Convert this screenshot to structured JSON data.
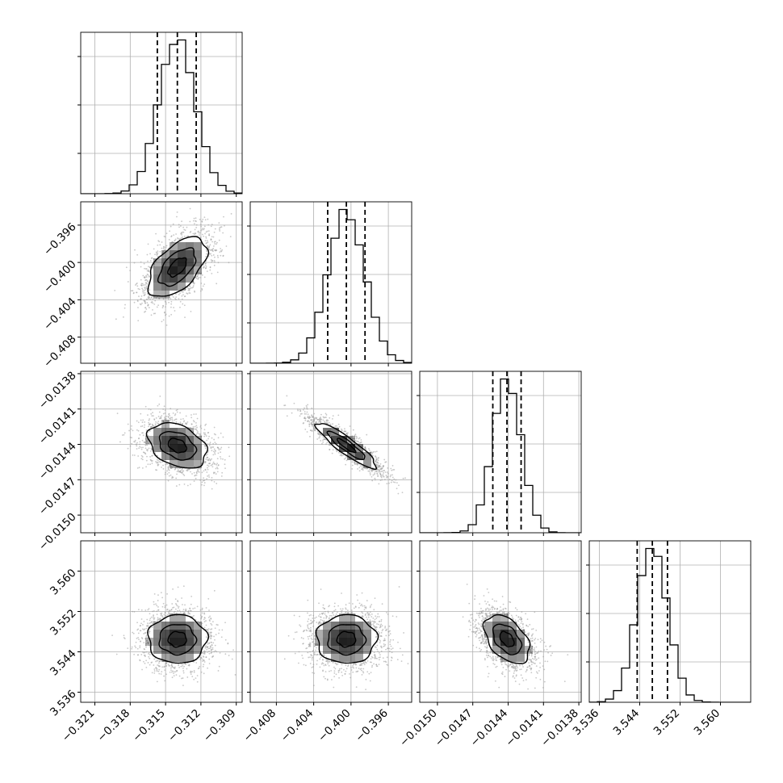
{
  "chart_data": {
    "type": "corner",
    "parameters": [
      {
        "ticks": [
          -0.321,
          -0.318,
          -0.315,
          -0.312,
          -0.309
        ],
        "tick_labels": [
          "−0.321",
          "−0.318",
          "−0.315",
          "−0.312",
          "−0.309"
        ],
        "range": [
          -0.3222,
          -0.3085
        ],
        "mean": -0.314,
        "sd": 0.00155,
        "quantiles": [
          -0.3157,
          -0.314,
          -0.3124
        ]
      },
      {
        "ticks": [
          -0.408,
          -0.404,
          -0.4,
          -0.396
        ],
        "tick_labels": [
          "−0.408",
          "−0.404",
          "−0.400",
          "−0.396"
        ],
        "range": [
          -0.4108,
          -0.3935
        ],
        "mean": -0.4005,
        "sd": 0.002,
        "quantiles": [
          -0.4025,
          -0.4005,
          -0.3985
        ]
      },
      {
        "ticks": [
          -0.015,
          -0.0147,
          -0.0144,
          -0.0141,
          -0.0138
        ],
        "tick_labels": [
          "−0.0150",
          "−0.0147",
          "−0.0144",
          "−0.0141",
          "−0.0138"
        ],
        "range": [
          -0.01515,
          -0.01378
        ],
        "mean": -0.01441,
        "sd": 0.00012,
        "quantiles": [
          -0.01453,
          -0.01441,
          -0.01429
        ]
      },
      {
        "ticks": [
          3.536,
          3.544,
          3.552,
          3.56
        ],
        "tick_labels": [
          "3.536",
          "3.544",
          "3.552",
          "3.560"
        ],
        "range": [
          3.534,
          3.566
        ],
        "mean": 3.5465,
        "sd": 0.003,
        "quantiles": [
          3.5435,
          3.5465,
          3.5495
        ]
      }
    ],
    "correlations": [
      {
        "x": 0,
        "y": 1,
        "rho": 0.55
      },
      {
        "x": 0,
        "y": 2,
        "rho": -0.35
      },
      {
        "x": 1,
        "y": 2,
        "rho": -0.9
      },
      {
        "x": 0,
        "y": 3,
        "rho": 0.0
      },
      {
        "x": 1,
        "y": 3,
        "rho": 0.0
      },
      {
        "x": 2,
        "y": 3,
        "rho": -0.45
      }
    ],
    "histogram_bins": 20,
    "contour_levels": 3,
    "grid": true,
    "colors": {
      "hist": "#000000",
      "quantile_line": "#000000",
      "points": "#9a9a9a",
      "grid": "#b0b0b0",
      "density": "#000000"
    }
  }
}
